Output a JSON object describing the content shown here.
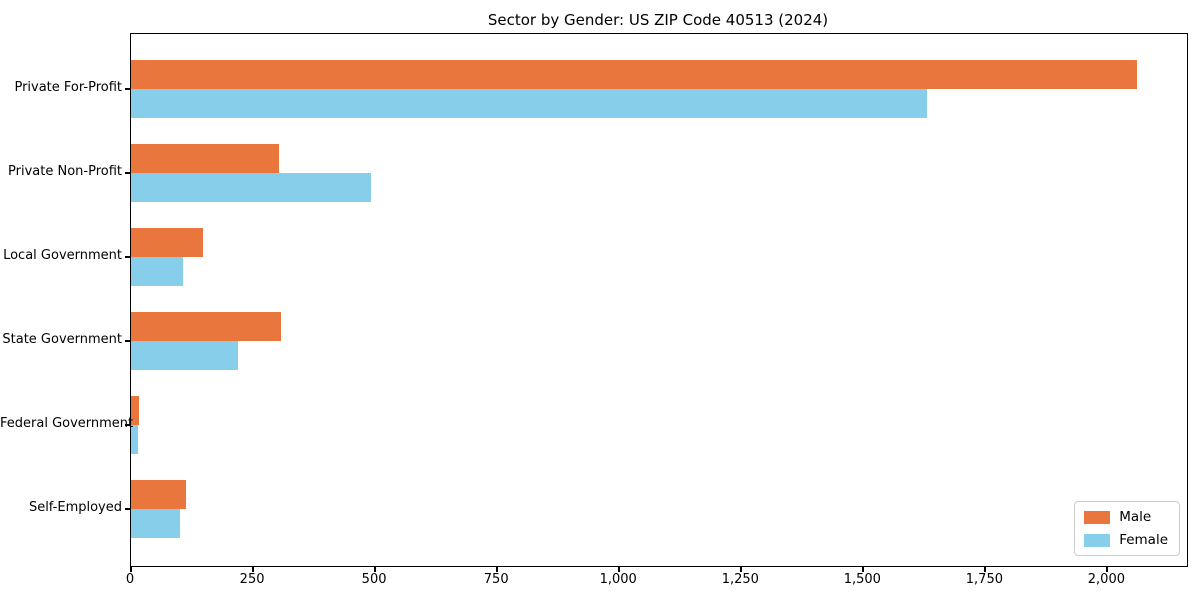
{
  "title": "Sector by Gender: US ZIP Code 40513 (2024)",
  "chart_data": {
    "type": "bar",
    "orientation": "horizontal",
    "title": "Sector by Gender: US ZIP Code 40513 (2024)",
    "categories": [
      "Private For-Profit",
      "Private Non-Profit",
      "Local Government",
      "State Government",
      "Federal Government",
      "Self-Employed"
    ],
    "series": [
      {
        "name": "Male",
        "color": "#e8763d",
        "values": [
          2060,
          303,
          148,
          307,
          16,
          112
        ]
      },
      {
        "name": "Female",
        "color": "#87ceeb",
        "values": [
          1630,
          492,
          107,
          219,
          14,
          100
        ]
      }
    ],
    "xlabel": "",
    "ylabel": "",
    "xlim": [
      0,
      2163
    ],
    "xticks": [
      0,
      250,
      500,
      750,
      1000,
      1250,
      1500,
      1750,
      2000
    ],
    "xtick_labels": [
      "0",
      "250",
      "500",
      "750",
      "1,000",
      "1,250",
      "1,500",
      "1,750",
      "2,000"
    ],
    "grid": false,
    "legend_position": "lower right",
    "legend_labels": [
      "Male",
      "Female"
    ]
  },
  "colors": {
    "male": "#e8763d",
    "female": "#87ceeb",
    "spine": "#000000",
    "background": "#ffffff"
  }
}
